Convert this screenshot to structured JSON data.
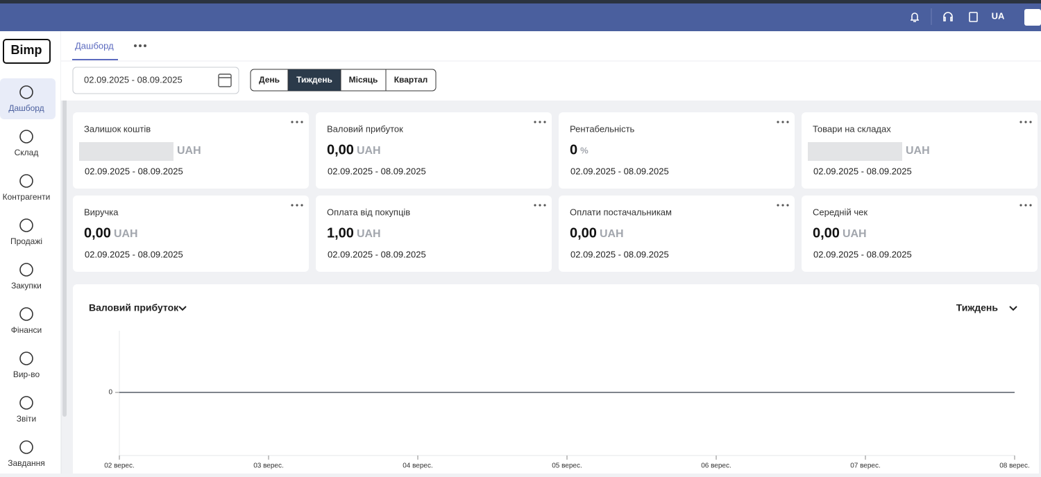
{
  "header": {
    "language": "UA"
  },
  "sidebar": {
    "logo": "Bimp",
    "items": [
      "Дашборд",
      "Склад",
      "Контрагенти",
      "Продажі",
      "Закупки",
      "Фінанси",
      "Вир-во",
      "Звіти",
      "Завдання"
    ]
  },
  "tabs": [
    "Дашборд"
  ],
  "filters": {
    "date_range": "02.09.2025 - 08.09.2025",
    "periods": [
      "День",
      "Тиждень",
      "Місяць",
      "Квартал"
    ]
  },
  "cards": [
    {
      "title": "Залишок коштів",
      "unit": "UAH",
      "date": "02.09.2025 - 08.09.2025"
    },
    {
      "title": "Валовий прибуток",
      "value": "0,00",
      "unit": "UAH",
      "date": "02.09.2025 - 08.09.2025"
    },
    {
      "title": "Рентабельність",
      "value": "0",
      "unit": "%",
      "date": "02.09.2025 - 08.09.2025"
    },
    {
      "title": "Товари на складах",
      "unit": "UAH",
      "date": "02.09.2025 - 08.09.2025"
    },
    {
      "title": "Виручка",
      "value": "0,00",
      "unit": "UAH",
      "date": "02.09.2025 - 08.09.2025"
    },
    {
      "title": "Оплата від покупців",
      "value": "1,00",
      "unit": "UAH",
      "date": "02.09.2025 - 08.09.2025"
    },
    {
      "title": "Оплати постачальникам",
      "value": "0,00",
      "unit": "UAH",
      "date": "02.09.2025 - 08.09.2025"
    },
    {
      "title": "Середній чек",
      "value": "0,00",
      "unit": "UAH",
      "date": "02.09.2025 - 08.09.2025"
    }
  ],
  "chart_data": {
    "type": "line",
    "title": "Валовий прибуток",
    "period": "Тиждень",
    "categories": [
      "02 верес.",
      "03 верес.",
      "04 верес.",
      "05 верес.",
      "06 верес.",
      "07 верес.",
      "08 верес."
    ],
    "series": [
      {
        "name": "Валовий прибуток",
        "color": "#555b66",
        "values": [
          0,
          0,
          0,
          0,
          0,
          0,
          0
        ]
      }
    ],
    "ylim": [
      -1,
      1
    ],
    "yticks": [
      0
    ]
  }
}
